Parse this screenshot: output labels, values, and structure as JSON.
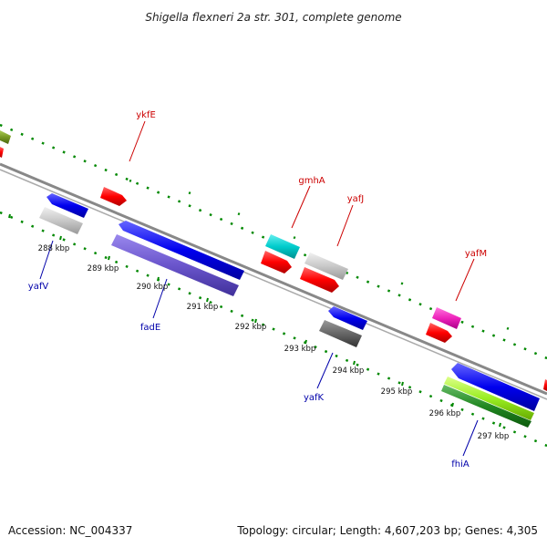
{
  "title": "Shigella flexneri 2a str. 301, complete genome",
  "footer": {
    "accession": "Accession: NC_004337",
    "topology": "Topology: circular; Length: 4,607,203 bp; Genes: 4,305"
  },
  "ticks": [
    "288 kbp",
    "289 kbp",
    "290 kbp",
    "291 kbp",
    "292 kbp",
    "293 kbp",
    "294 kbp",
    "295 kbp",
    "296 kbp",
    "297 kbp"
  ],
  "genes": {
    "ykfE": "ykfE",
    "gmhA": "gmhA",
    "yafJ": "yafJ",
    "yafM": "yafM",
    "yafV": "yafV",
    "fadE": "fadE",
    "yafK": "yafK",
    "fhiA": "fhiA"
  },
  "colors": {
    "forward_label": "#cc0000",
    "reverse_label": "#0000aa",
    "backbone": "#888888",
    "ticks": "#008800"
  }
}
